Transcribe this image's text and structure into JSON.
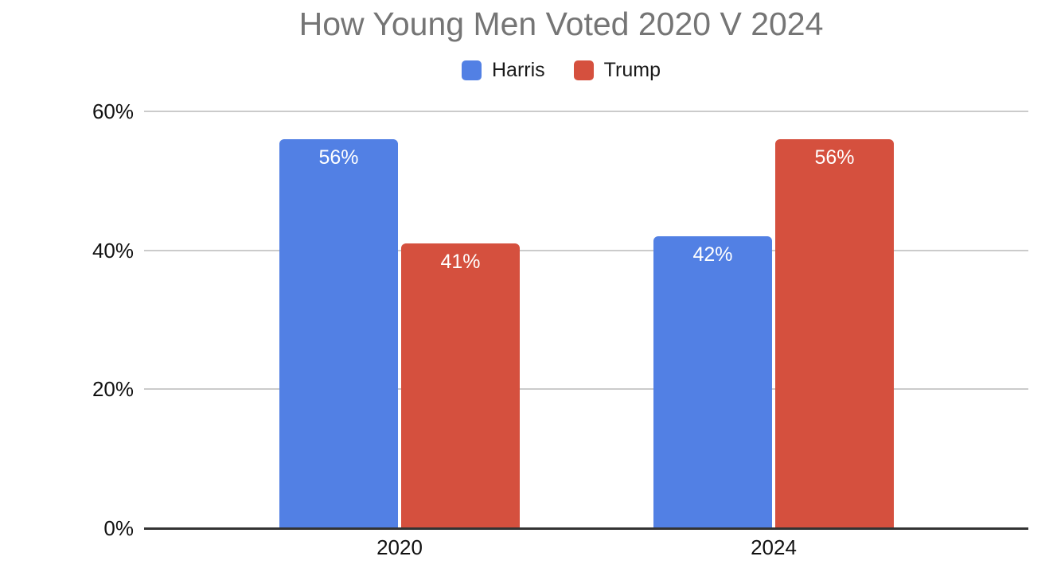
{
  "chart_data": {
    "type": "bar",
    "title": "How Young Men Voted 2020 V 2024",
    "categories": [
      "2020",
      "2024"
    ],
    "series": [
      {
        "name": "Harris",
        "color": "#5280e4",
        "values": [
          56,
          42
        ],
        "labels": [
          "56%",
          "42%"
        ]
      },
      {
        "name": "Trump",
        "color": "#d5503e",
        "values": [
          41,
          56
        ],
        "labels": [
          "41%",
          "56%"
        ]
      }
    ],
    "yticks": [
      {
        "value": 0,
        "label": "0%"
      },
      {
        "value": 20,
        "label": "20%"
      },
      {
        "value": 40,
        "label": "40%"
      },
      {
        "value": 60,
        "label": "60%"
      }
    ],
    "ylim": [
      0,
      60
    ],
    "grid": true,
    "legend_position": "top",
    "colors": {
      "title": "#757575",
      "data_label": "#ffffff",
      "axis_line": "#333333",
      "gridline": "#cbcbcb"
    }
  }
}
